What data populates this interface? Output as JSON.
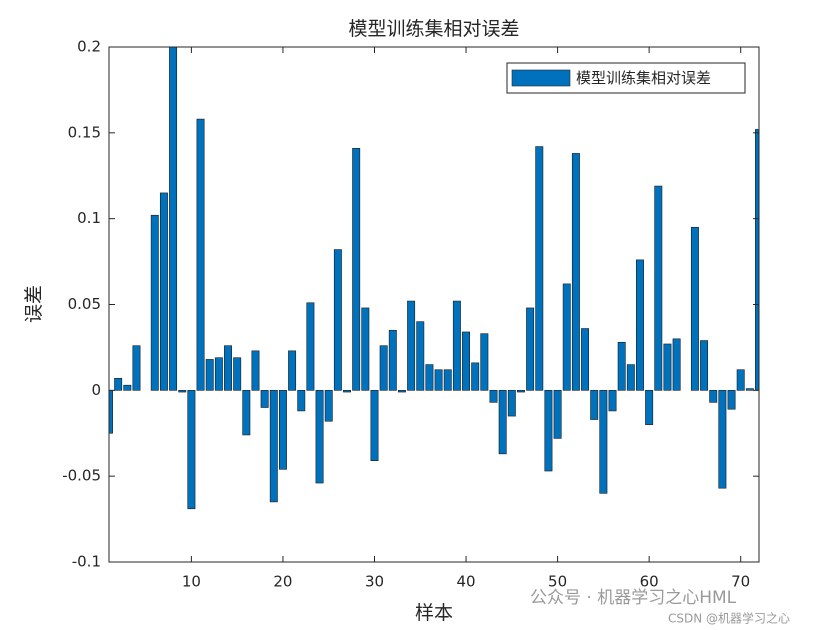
{
  "chart_data": {
    "type": "bar",
    "title": "模型训练集相对误差",
    "x_label": "样本",
    "y_label": "误差",
    "x": [
      1,
      2,
      3,
      4,
      5,
      6,
      7,
      8,
      9,
      10,
      11,
      12,
      13,
      14,
      15,
      16,
      17,
      18,
      19,
      20,
      21,
      22,
      23,
      24,
      25,
      26,
      27,
      28,
      29,
      30,
      31,
      32,
      33,
      34,
      35,
      36,
      37,
      38,
      39,
      40,
      41,
      42,
      43,
      44,
      45,
      46,
      47,
      48,
      49,
      50,
      51,
      52,
      53,
      54,
      55,
      56,
      57,
      58,
      59,
      60,
      61,
      62,
      63,
      64,
      65,
      66,
      67,
      68,
      69,
      70,
      71,
      72
    ],
    "series": [
      {
        "name": "模型训练集相对误差",
        "color": "#0072bd",
        "values": [
          -0.025,
          0.007,
          0.003,
          0.026,
          0,
          0.102,
          0.115,
          0.2,
          -0.001,
          -0.069,
          0.158,
          0.018,
          0.019,
          0.026,
          0.019,
          -0.026,
          0.023,
          -0.01,
          -0.065,
          -0.046,
          0.023,
          -0.012,
          0.051,
          -0.054,
          -0.018,
          0.082,
          -0.001,
          0.141,
          0.048,
          -0.041,
          0.026,
          0.035,
          -0.001,
          0.052,
          0.04,
          0.015,
          0.012,
          0.012,
          0.052,
          0.034,
          0.016,
          0.033,
          -0.007,
          -0.037,
          -0.015,
          -0.001,
          0.048,
          0.142,
          -0.047,
          -0.028,
          0.062,
          0.138,
          0.036,
          -0.017,
          -0.06,
          -0.012,
          0.028,
          0.015,
          0.076,
          -0.02,
          0.119,
          0.027,
          0.03,
          0,
          0.095,
          0.029,
          -0.007,
          -0.057,
          -0.011,
          0.012,
          0.001,
          0.152
        ]
      }
    ],
    "xlim": [
      1,
      72
    ],
    "xticks": [
      10,
      20,
      30,
      40,
      50,
      60,
      70
    ],
    "ylim": [
      -0.1,
      0.2
    ],
    "yticks": [
      -0.1,
      -0.05,
      0,
      0.05,
      0.1,
      0.15,
      0.2
    ],
    "legend": "top-right",
    "grid": false
  },
  "watermark": {
    "line1": "公众号 · 机器学习之心HML",
    "line2": "CSDN @机器学习之心"
  }
}
